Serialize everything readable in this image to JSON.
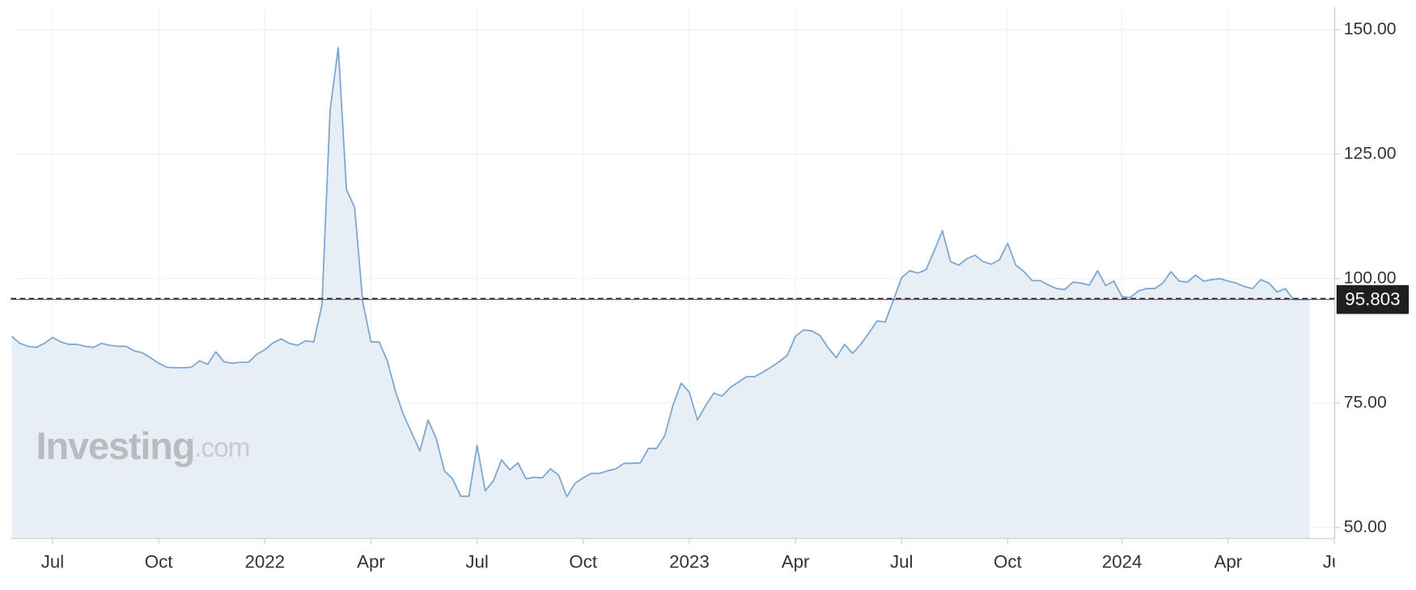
{
  "chart_data": {
    "type": "area",
    "categories": [
      null,
      null,
      null,
      null,
      null,
      "Jul",
      null,
      null,
      null,
      null,
      null,
      null,
      null,
      null,
      null,
      null,
      null,
      null,
      "Oct",
      null,
      null,
      null,
      null,
      null,
      null,
      null,
      null,
      null,
      null,
      null,
      null,
      "2022",
      null,
      null,
      null,
      null,
      null,
      null,
      null,
      null,
      null,
      null,
      null,
      null,
      "Apr",
      null,
      null,
      null,
      null,
      null,
      null,
      null,
      null,
      null,
      null,
      null,
      null,
      "Jul",
      null,
      null,
      null,
      null,
      null,
      null,
      null,
      null,
      null,
      null,
      null,
      null,
      "Oct",
      null,
      null,
      null,
      null,
      null,
      null,
      null,
      null,
      null,
      null,
      null,
      null,
      "2023",
      null,
      null,
      null,
      null,
      null,
      null,
      null,
      null,
      null,
      null,
      null,
      null,
      "Apr",
      null,
      null,
      null,
      null,
      null,
      null,
      null,
      null,
      null,
      null,
      null,
      null,
      "Jul",
      null,
      null,
      null,
      null,
      null,
      null,
      null,
      null,
      null,
      null,
      null,
      null,
      "Oct",
      null,
      null,
      null,
      null,
      null,
      null,
      null,
      null,
      null,
      null,
      null,
      null,
      null,
      "2024",
      null,
      null,
      null,
      null,
      null,
      null,
      null,
      null,
      null,
      null,
      null,
      null,
      "Apr",
      null,
      null,
      null,
      null,
      null,
      null,
      null,
      null,
      null,
      null,
      null,
      null,
      "Jul"
    ],
    "series": [
      {
        "color": "#7ba7d1",
        "fill": "#e8eef6",
        "values": [
          88.4,
          87.0,
          86.4,
          86.2,
          87.0,
          88.2,
          87.3,
          86.8,
          86.8,
          86.4,
          86.2,
          87.0,
          86.6,
          86.4,
          86.4,
          85.5,
          85.1,
          84.1,
          83.0,
          82.2,
          82.1,
          82.1,
          82.2,
          83.5,
          82.8,
          85.3,
          83.3,
          83.0,
          83.2,
          83.2,
          84.8,
          85.7,
          87.1,
          87.9,
          87.0,
          86.6,
          87.5,
          87.3,
          94.7,
          133.9,
          146.4,
          117.9,
          114.3,
          95.3,
          87.3,
          87.3,
          83.5,
          77.4,
          72.6,
          69.0,
          65.4,
          71.6,
          67.9,
          61.4,
          59.8,
          56.3,
          56.3,
          66.5,
          57.4,
          59.4,
          63.6,
          61.6,
          63.0,
          59.8,
          60.1,
          60.0,
          61.8,
          60.5,
          56.2,
          58.9,
          60.0,
          60.9,
          60.9,
          61.4,
          61.8,
          62.9,
          62.9,
          63.0,
          65.9,
          65.9,
          68.5,
          74.6,
          79.0,
          77.2,
          71.6,
          74.5,
          77.0,
          76.4,
          78.1,
          79.2,
          80.3,
          80.3,
          81.2,
          82.2,
          83.3,
          84.6,
          88.4,
          89.7,
          89.5,
          88.6,
          86.1,
          84.1,
          86.8,
          85.0,
          86.8,
          89.1,
          91.5,
          91.3,
          95.7,
          100.2,
          101.6,
          101.1,
          101.8,
          105.6,
          109.6,
          103.4,
          102.7,
          104.0,
          104.7,
          103.4,
          102.9,
          103.8,
          107.1,
          102.7,
          101.4,
          99.6,
          99.6,
          98.7,
          98.0,
          97.8,
          99.3,
          99.1,
          98.7,
          101.6,
          98.6,
          99.5,
          96.4,
          96.2,
          97.5,
          98.0,
          98.0,
          99.1,
          101.4,
          99.5,
          99.3,
          100.7,
          99.5,
          99.8,
          100.0,
          99.5,
          99.1,
          98.4,
          98.0,
          99.8,
          99.1,
          97.3,
          98.0,
          95.8,
          95.8,
          95.8,
          null,
          null,
          null
        ]
      }
    ],
    "ylim": [
      47.8,
      154.5
    ],
    "yticks": [
      {
        "value": 50,
        "label": "50.00"
      },
      {
        "value": 75,
        "label": "75.00"
      },
      {
        "value": 100,
        "label": "100.00"
      },
      {
        "value": 125,
        "label": "125.00"
      },
      {
        "value": 150,
        "label": "150.00"
      }
    ],
    "grid": true,
    "last_price": 95.803,
    "last_price_color": "#c0392b",
    "dashed_line": 96.0,
    "watermark": {
      "brand": "Investing",
      "suffix": ".com"
    }
  }
}
